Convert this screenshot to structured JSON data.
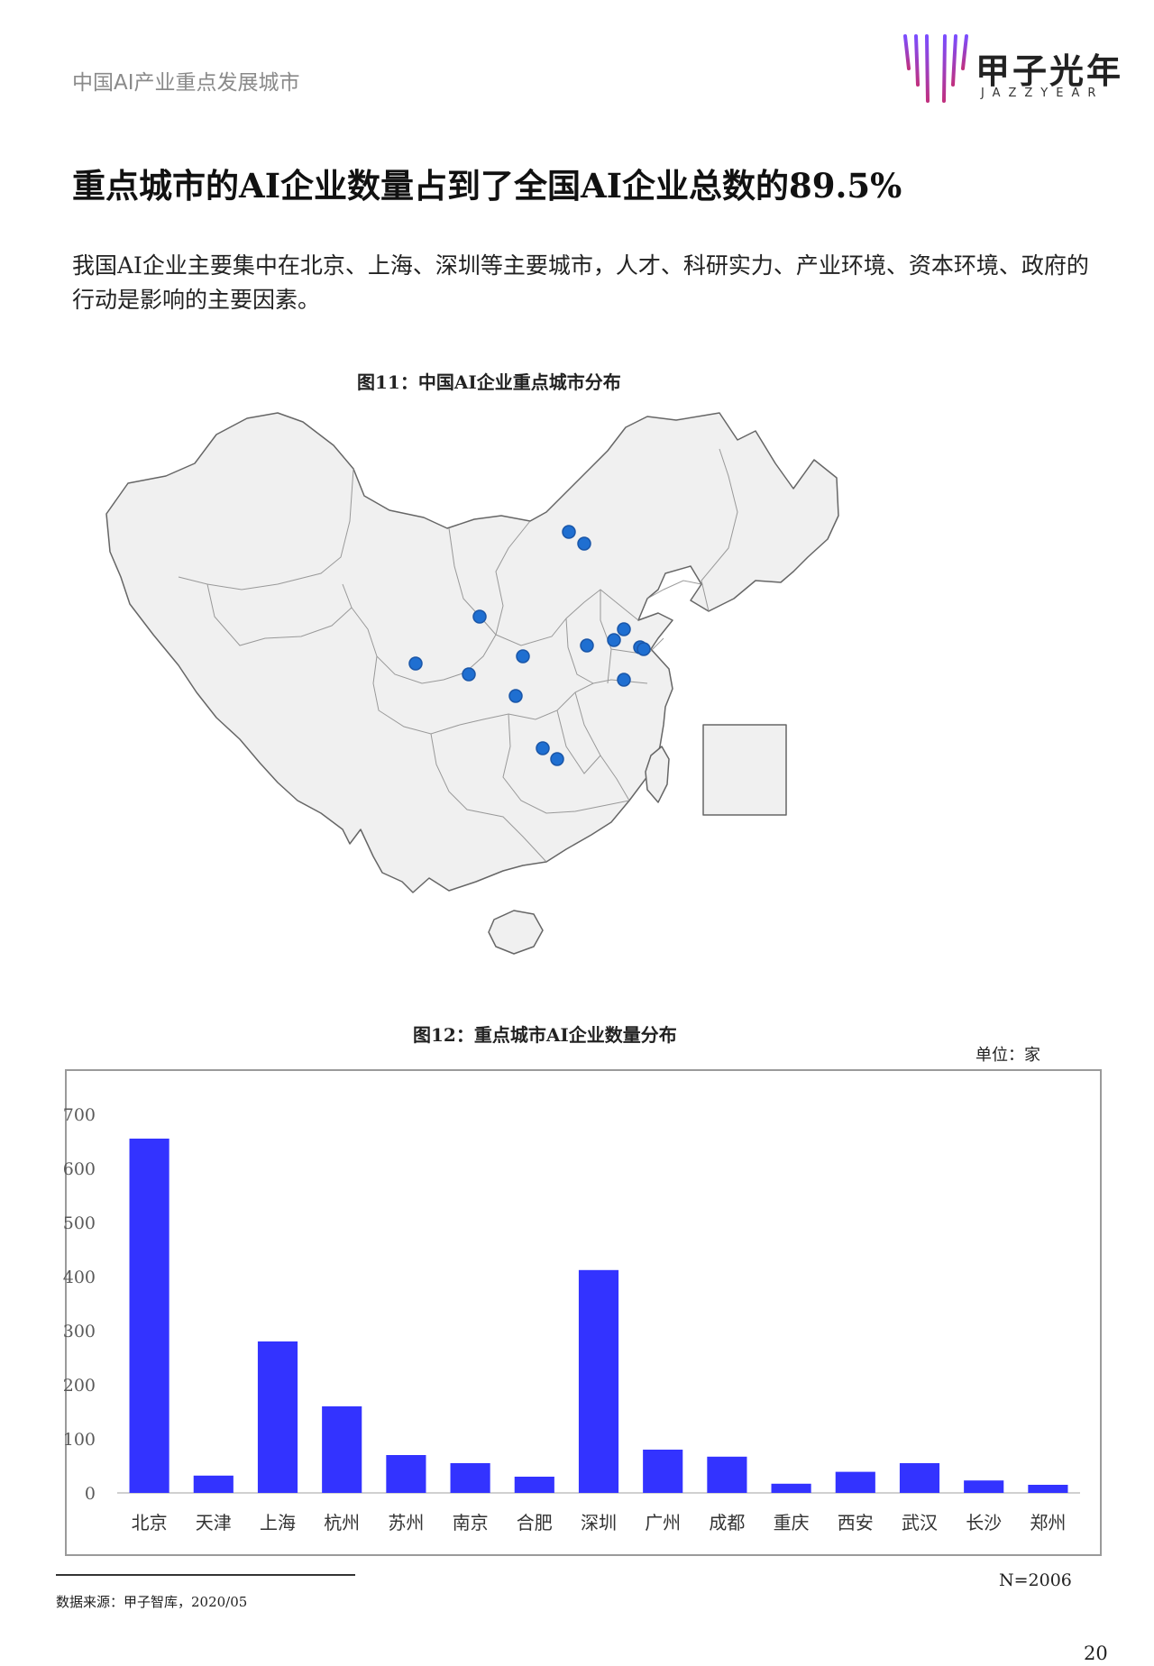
{
  "header": {
    "title": "中国AI产业重点发展城市",
    "logo_cn": "甲子光年",
    "logo_en": "JAZZYEAR"
  },
  "main": {
    "title": "重点城市的AI企业数量占到了全国AI企业总数的89.5%",
    "intro": "我国AI企业主要集中在北京、上海、深圳等主要城市，人才、科研实力、产业环境、资本环境、政府的行动是影响的主要因素。"
  },
  "figure11": {
    "title": "图11：中国AI企业重点城市分布"
  },
  "figure12": {
    "title": "图12：重点城市AI企业数量分布",
    "unit": "单位：家",
    "n_label": "N=2006"
  },
  "chart_data": {
    "type": "bar",
    "title": "",
    "xlabel": "",
    "ylabel": "",
    "categories": [
      "北京",
      "天津",
      "上海",
      "杭州",
      "苏州",
      "南京",
      "合肥",
      "深圳",
      "广州",
      "成都",
      "重庆",
      "西安",
      "武汉",
      "长沙",
      "郑州"
    ],
    "values": [
      655,
      32,
      280,
      160,
      70,
      55,
      30,
      412,
      80,
      67,
      17,
      39,
      55,
      23,
      15
    ],
    "ylim": [
      0,
      700
    ],
    "yticks": [
      0,
      100,
      200,
      300,
      400,
      500,
      600,
      700
    ],
    "grid": false,
    "legend": "none",
    "bar_color": "#3333ff"
  },
  "footer": {
    "source": "数据来源：甲子智库，2020/05",
    "page_number": "20"
  },
  "colors": {
    "bar": "#3333ff",
    "map_fill": "#f0f0f0",
    "map_stroke": "#666666",
    "city_dot": "#1f6fd1",
    "header_text": "#8a8a8a"
  }
}
